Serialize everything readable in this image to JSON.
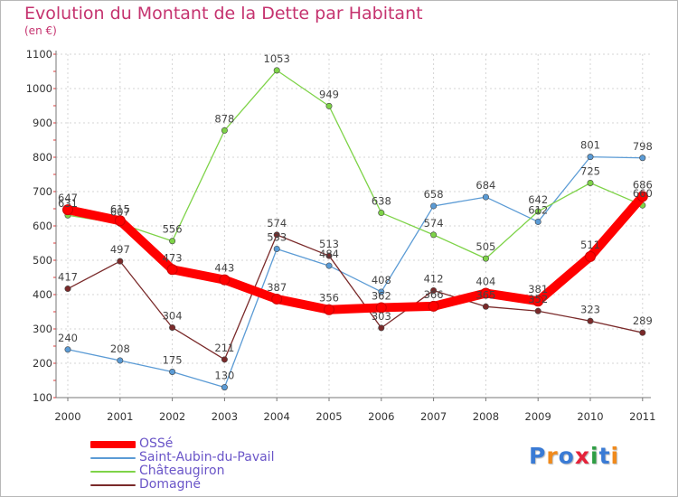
{
  "header": {
    "title": "Evolution du Montant de la Dette par Habitant",
    "subtitle": "(en €)"
  },
  "logo": {
    "text": "Proxiti",
    "letter_colors": [
      "#3a7bd5",
      "#f08a1c",
      "#3a7bd5",
      "#e5223a",
      "#2e9e44",
      "#3a7bd5",
      "#f08a1c"
    ]
  },
  "chart_data": {
    "type": "line",
    "x": [
      "2000",
      "2001",
      "2002",
      "2003",
      "2004",
      "2005",
      "2006",
      "2007",
      "2008",
      "2009",
      "2010",
      "2011"
    ],
    "ylim": [
      100,
      1100
    ],
    "yticks": [
      100,
      200,
      300,
      400,
      500,
      600,
      700,
      800,
      900,
      1000,
      1100
    ],
    "grid": true,
    "legend_position": "bottom-left",
    "series": [
      {
        "name": "OSSé",
        "color": "#ff0000",
        "values": [
          647,
          615,
          473,
          443,
          387,
          356,
          362,
          366,
          404,
          381,
          511,
          686
        ]
      },
      {
        "name": "Saint-Aubin-du-Pavail",
        "color": "#5b9bd5",
        "values": [
          240,
          208,
          175,
          130,
          533,
          484,
          408,
          658,
          684,
          612,
          801,
          798
        ]
      },
      {
        "name": "Châteaugiron",
        "color": "#7ed348",
        "values": [
          631,
          607,
          556,
          878,
          1053,
          949,
          638,
          574,
          505,
          642,
          725,
          660
        ]
      },
      {
        "name": "Domagné",
        "color": "#7a2a2a",
        "values": [
          417,
          497,
          304,
          211,
          574,
          513,
          303,
          412,
          365,
          352,
          323,
          289
        ]
      }
    ]
  }
}
